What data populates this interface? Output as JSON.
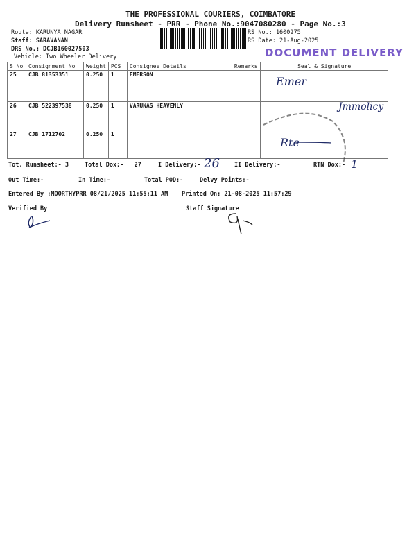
{
  "header": {
    "company": "THE PROFESSIONAL COURIERS, COIMBATORE",
    "subtitle": "Delivery Runsheet - PRR - Phone No.:9047080280 - Page No.:3",
    "route": "Route: KARUNYA NAGAR",
    "staff": "Staff: SARAVANAN",
    "drs_no": "DRS No.: DCJB160027503",
    "vehicle": "Vehicle: Two Wheeler Delivery",
    "rs_no": "RS No.: 1600275",
    "rs_date": "RS Date: 21-Aug-2025"
  },
  "stamp": "DOCUMENT DELIVERY",
  "table": {
    "columns": [
      "S No",
      "Consignment No",
      "Weight",
      "PCS",
      "Consignee Details",
      "Remarks",
      "Seal & Signature"
    ],
    "rows": [
      {
        "sno": "25",
        "consignment": "CJB 81353351",
        "weight": "0.250",
        "pcs": "1",
        "consignee": "EMERSON",
        "remarks": "",
        "signature": "Emer"
      },
      {
        "sno": "26",
        "consignment": "CJB 522397538",
        "weight": "0.250",
        "pcs": "1",
        "consignee": "VARUNAS HEAVENLY",
        "remarks": "",
        "signature": "Jmmolicy"
      },
      {
        "sno": "27",
        "consignment": "CJB 1712702",
        "weight": "0.250",
        "pcs": "1",
        "consignee": "",
        "remarks": "",
        "signature": "Rte"
      }
    ]
  },
  "summary": {
    "tot_runsheet": "Tot. Runsheet:- 3",
    "total_dox": "Total Dox:-   27",
    "i_delivery": "I Delivery:-",
    "i_delivery_hand": "26",
    "ii_delivery": "II Delivery:-",
    "rtn_dox": "RTN Dox:-",
    "rtn_dox_hand": "1",
    "out_time": "Out Time:-",
    "in_time": "In Time:-",
    "total_pod": "Total POD:-",
    "delvy_points": "Delvy Points:-",
    "entered_by": "Entered By :MOORTHYPRR 08/21/2025 11:55:11 AM",
    "printed_on": "Printed On: 21-08-2025 11:57:29",
    "verified_by": "Verified By",
    "staff_signature": "Staff Signature"
  }
}
